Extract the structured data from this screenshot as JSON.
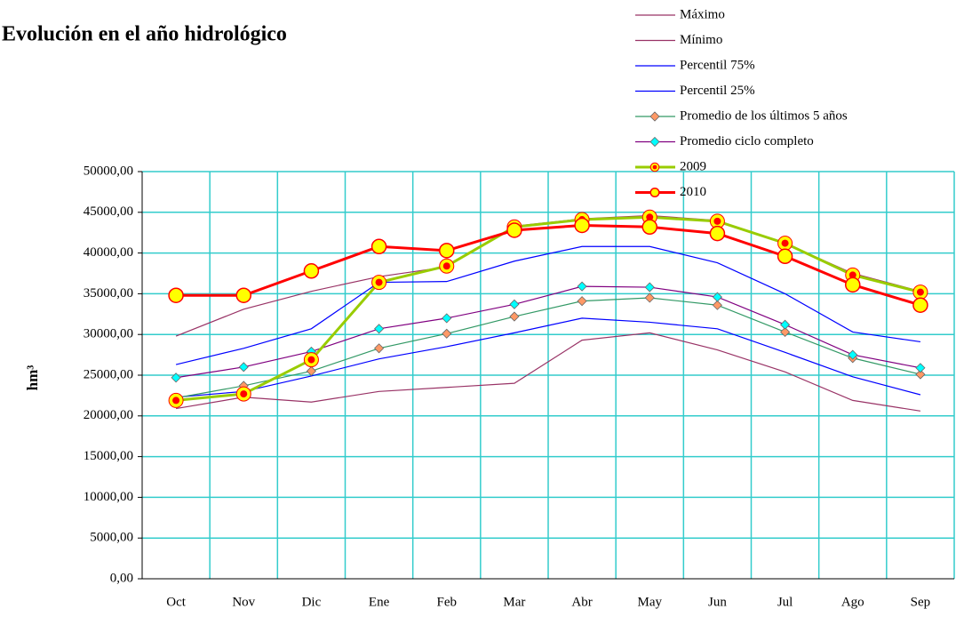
{
  "chart_data": {
    "type": "line",
    "title": "Evolución en el año hidrológico",
    "y_label": "hm³",
    "categories": [
      "Oct",
      "Nov",
      "Dic",
      "Ene",
      "Feb",
      "Mar",
      "Abr",
      "May",
      "Jun",
      "Jul",
      "Ago",
      "Sep"
    ],
    "ylim": [
      0,
      50000
    ],
    "yticks": [
      {
        "value": 0,
        "label": "0,00"
      },
      {
        "value": 5000,
        "label": "5000,00"
      },
      {
        "value": 10000,
        "label": "10000,00"
      },
      {
        "value": 15000,
        "label": "15000,00"
      },
      {
        "value": 20000,
        "label": "20000,00"
      },
      {
        "value": 25000,
        "label": "25000,00"
      },
      {
        "value": 30000,
        "label": "30000,00"
      },
      {
        "value": 35000,
        "label": "35000,00"
      },
      {
        "value": 40000,
        "label": "40000,00"
      },
      {
        "value": 45000,
        "label": "45000,00"
      },
      {
        "value": 50000,
        "label": "50000,00"
      }
    ],
    "grid": true,
    "legend": "top-right",
    "series": [
      {
        "name": "Máximo",
        "color": "#993366",
        "marker": "none",
        "values": [
          29800,
          33100,
          35300,
          37100,
          38300,
          43300,
          44200,
          44600,
          44000,
          41200,
          37500,
          35300
        ]
      },
      {
        "name": "Mínimo",
        "color": "#993366",
        "marker": "none",
        "values": [
          20900,
          22300,
          21700,
          23000,
          23500,
          24000,
          29300,
          30200,
          28100,
          25400,
          21900,
          20600
        ]
      },
      {
        "name": "Percentil 75%",
        "color": "#0000ff",
        "marker": "none",
        "values": [
          26300,
          28300,
          30700,
          36400,
          36500,
          39000,
          40800,
          40800,
          38800,
          35000,
          30300,
          29100
        ]
      },
      {
        "name": "Percentil 25%",
        "color": "#0000ff",
        "marker": "none",
        "values": [
          22300,
          23000,
          24900,
          27000,
          28500,
          30200,
          32000,
          31500,
          30700,
          27800,
          24800,
          22600
        ]
      },
      {
        "name": "Promedio de los últimos 5 años",
        "color": "#339966",
        "marker": "diamond",
        "marker_color": "#ff9966",
        "values": [
          22200,
          23700,
          25500,
          28300,
          30100,
          32200,
          34100,
          34500,
          33600,
          30300,
          27100,
          25100
        ]
      },
      {
        "name": "Promedio ciclo completo",
        "color": "#800080",
        "marker": "diamond",
        "marker_color": "#00ffff",
        "values": [
          24700,
          26000,
          27900,
          30700,
          32000,
          33700,
          35900,
          35800,
          34600,
          31200,
          27500,
          25900
        ]
      },
      {
        "name": "2009",
        "color": "#99cc00",
        "marker": "dot",
        "marker_color": "#ff0000",
        "values": [
          21900,
          22700,
          26900,
          36400,
          38400,
          43200,
          44100,
          44400,
          43900,
          41200,
          37300,
          35200
        ]
      },
      {
        "name": "2010",
        "color": "#ff0000",
        "marker": "circle",
        "marker_color": "#ffff00",
        "values": [
          34800,
          34800,
          37800,
          40800,
          40300,
          42800,
          43400,
          43200,
          42400,
          39600,
          36100,
          33600
        ]
      }
    ]
  }
}
